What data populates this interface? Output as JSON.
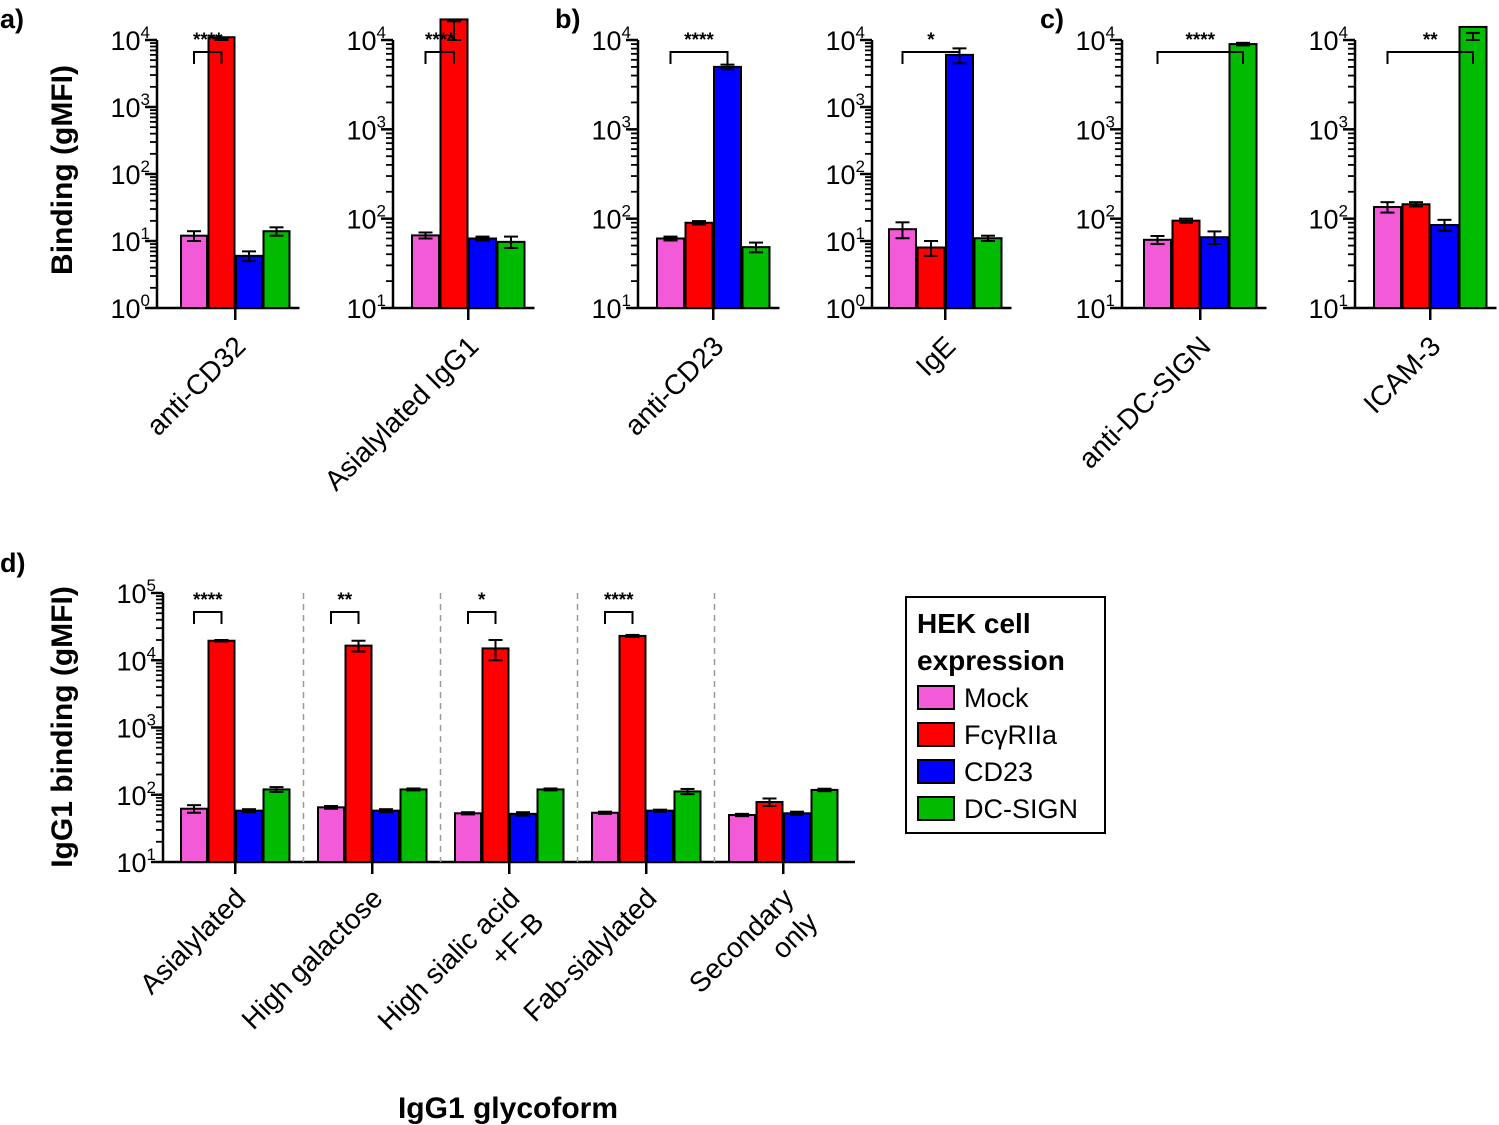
{
  "chart_data": {
    "type": "bar",
    "yscale": "log10",
    "panel_letters": [
      "a)",
      "b)",
      "c)",
      "d)"
    ],
    "colors": {
      "Mock": "#f25ad7",
      "FcγRIIa": "#ff0000",
      "CD23": "#0000ff",
      "DC-SIGN": "#00bb00"
    },
    "legend": {
      "title_lines": [
        "HEK cell",
        "expression"
      ],
      "entries": [
        "Mock",
        "FcγRIIa",
        "CD23",
        "DC-SIGN"
      ],
      "position": "right of panel d"
    },
    "top_row": {
      "ylabel": "Binding (gMFI)",
      "subplots": [
        {
          "panel": "a)",
          "category": "anti-CD32",
          "ylim_exp": [
            0,
            4
          ],
          "values": [
            12,
            11000,
            6,
            14
          ],
          "errors": [
            2,
            500,
            1,
            2
          ],
          "sig": {
            "label": "****",
            "from": "Mock",
            "to": "FcγRIIa"
          }
        },
        {
          "panel": "a)",
          "category": "Asialylated IgG1",
          "ylim_exp": [
            1,
            4
          ],
          "values": [
            65,
            17000,
            60,
            55
          ],
          "errors": [
            5,
            800,
            3,
            8
          ],
          "sig": {
            "label": "****",
            "from": "Mock",
            "to": "FcγRIIa"
          }
        },
        {
          "panel": "b)",
          "category": "anti-CD23",
          "ylim_exp": [
            1,
            4
          ],
          "values": [
            60,
            90,
            5000,
            48
          ],
          "errors": [
            3,
            4,
            300,
            6
          ],
          "sig": {
            "label": "****",
            "from": "Mock",
            "to": "CD23"
          }
        },
        {
          "panel": "b)",
          "category": "IgE",
          "ylim_exp": [
            0,
            4
          ],
          "values": [
            15,
            8,
            6000,
            11
          ],
          "errors": [
            4,
            2,
            1500,
            1
          ],
          "sig": {
            "label": "*",
            "from": "Mock",
            "to": "CD23"
          }
        },
        {
          "panel": "c)",
          "category": "anti-DC-SIGN",
          "ylim_exp": [
            1,
            4
          ],
          "values": [
            58,
            95,
            62,
            9000
          ],
          "errors": [
            6,
            5,
            10,
            300
          ],
          "sig": {
            "label": "****",
            "from": "Mock",
            "to": "DC-SIGN"
          }
        },
        {
          "panel": "c)",
          "category": "ICAM-3",
          "ylim_exp": [
            1,
            4
          ],
          "values": [
            135,
            145,
            85,
            14000
          ],
          "errors": [
            18,
            8,
            12,
            2000
          ],
          "sig": {
            "label": "**",
            "from": "Mock",
            "to": "DC-SIGN"
          }
        }
      ]
    },
    "bottom": {
      "panel": "d)",
      "ylabel": "IgG1 binding (gMFI)",
      "xlabel": "IgG1 glycoform",
      "ylim_exp": [
        1,
        5
      ],
      "groups": [
        {
          "lines": [
            "Asialylated"
          ],
          "values": [
            62,
            19500,
            58,
            120
          ],
          "errors": [
            8,
            500,
            3,
            10
          ],
          "sig": "****"
        },
        {
          "lines": [
            "High galactose"
          ],
          "values": [
            65,
            16500,
            58,
            120
          ],
          "errors": [
            3,
            3000,
            3,
            4
          ],
          "sig": "**"
        },
        {
          "lines": [
            "High sialic acid",
            "+F-B"
          ],
          "values": [
            53,
            15000,
            52,
            120
          ],
          "errors": [
            2,
            5000,
            3,
            4
          ],
          "sig": "*"
        },
        {
          "lines": [
            "Fab-sialylated"
          ],
          "values": [
            54,
            23000,
            58,
            112
          ],
          "errors": [
            2,
            800,
            2,
            10
          ],
          "sig": "****"
        },
        {
          "lines": [
            "Secondary",
            "only"
          ],
          "values": [
            50,
            78,
            53,
            118
          ],
          "errors": [
            2,
            10,
            3,
            5
          ],
          "sig": ""
        }
      ]
    }
  }
}
